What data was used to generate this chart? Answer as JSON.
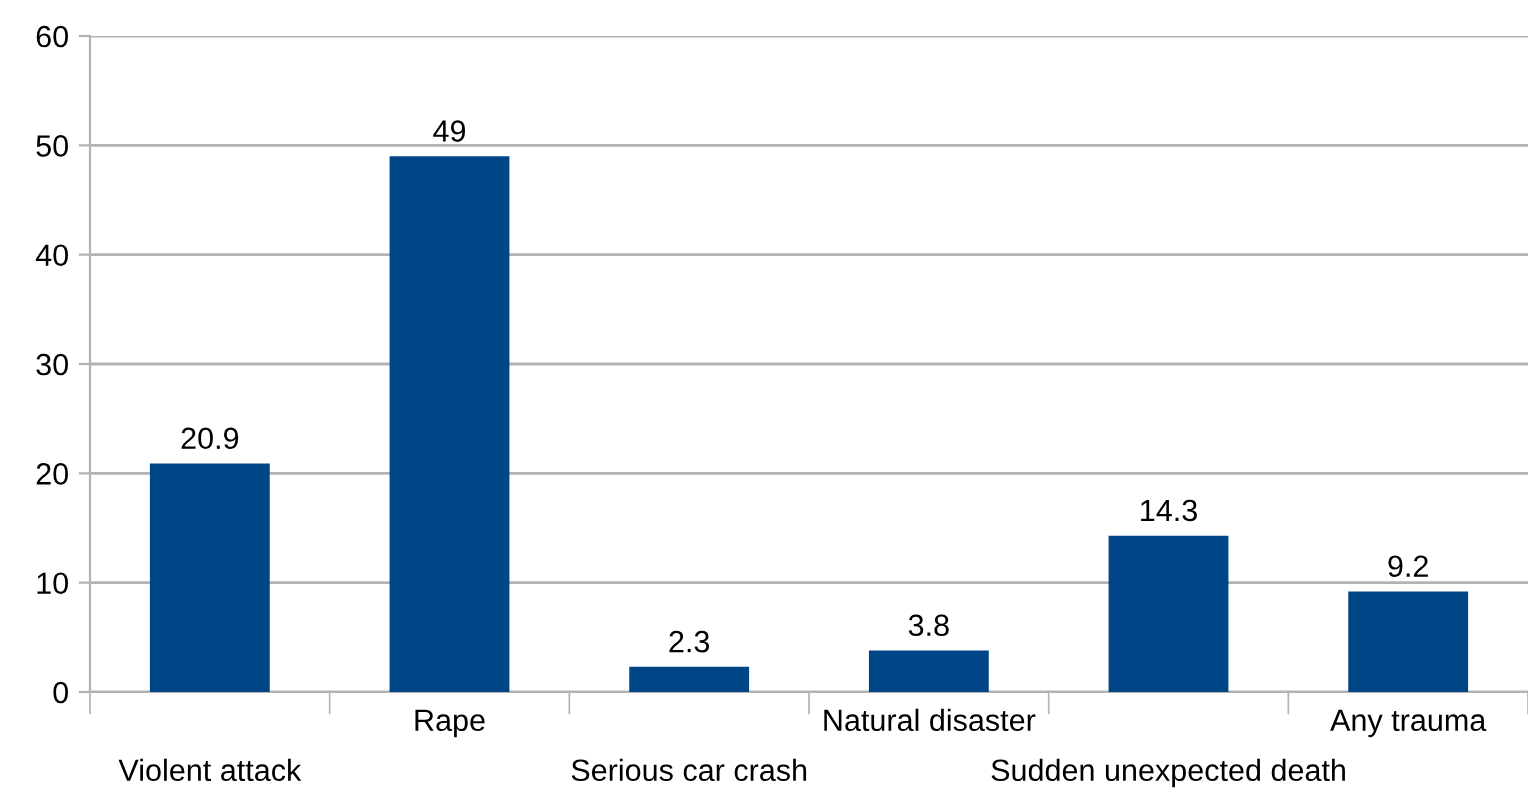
{
  "chart_data": {
    "type": "bar",
    "categories": [
      "Violent attack",
      "Rape",
      "Serious car crash",
      "Natural disaster",
      "Sudden unexpected death",
      "Any trauma"
    ],
    "values": [
      20.9,
      49,
      2.3,
      3.8,
      14.3,
      9.2
    ],
    "color": "#004586",
    "ylim": [
      0,
      60
    ],
    "yticks": [
      0,
      10,
      20,
      30,
      40,
      50,
      60
    ],
    "grid": "y",
    "data_labels": true,
    "legend": false
  }
}
